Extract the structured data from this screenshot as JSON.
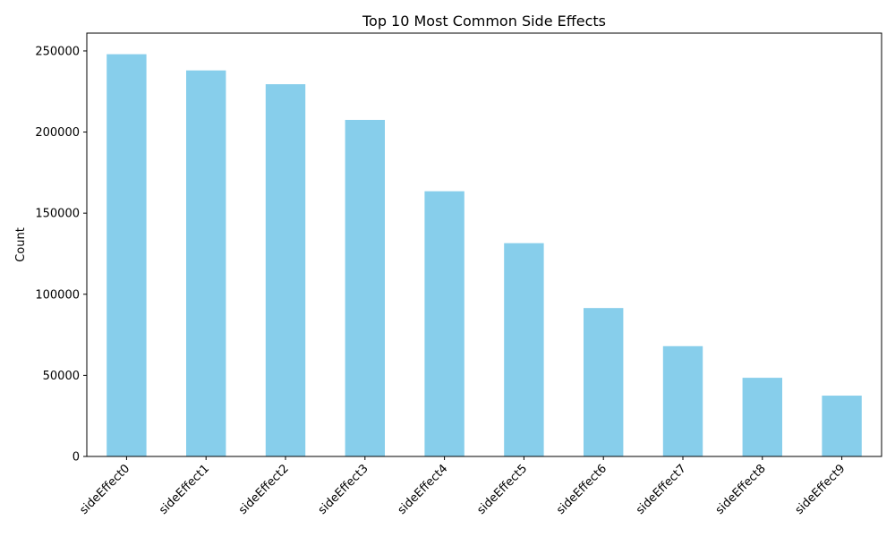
{
  "chart_data": {
    "type": "bar",
    "title": "Top 10 Most Common Side Effects",
    "xlabel": "",
    "ylabel": "Count",
    "categories": [
      "sideEffect0",
      "sideEffect1",
      "sideEffect2",
      "sideEffect3",
      "sideEffect4",
      "sideEffect5",
      "sideEffect6",
      "sideEffect7",
      "sideEffect8",
      "sideEffect9"
    ],
    "values": [
      248000,
      238000,
      229500,
      207500,
      163500,
      131500,
      91500,
      68000,
      48500,
      37500
    ],
    "ylim": [
      0,
      261000
    ],
    "yticks": [
      0,
      50000,
      100000,
      150000,
      200000,
      250000
    ],
    "ytick_labels": [
      "0",
      "50000",
      "100000",
      "150000",
      "200000",
      "250000"
    ],
    "x_tick_rotation": "45 degrees",
    "grid": false,
    "legend": "none",
    "bar_color": "#87ceeb"
  }
}
